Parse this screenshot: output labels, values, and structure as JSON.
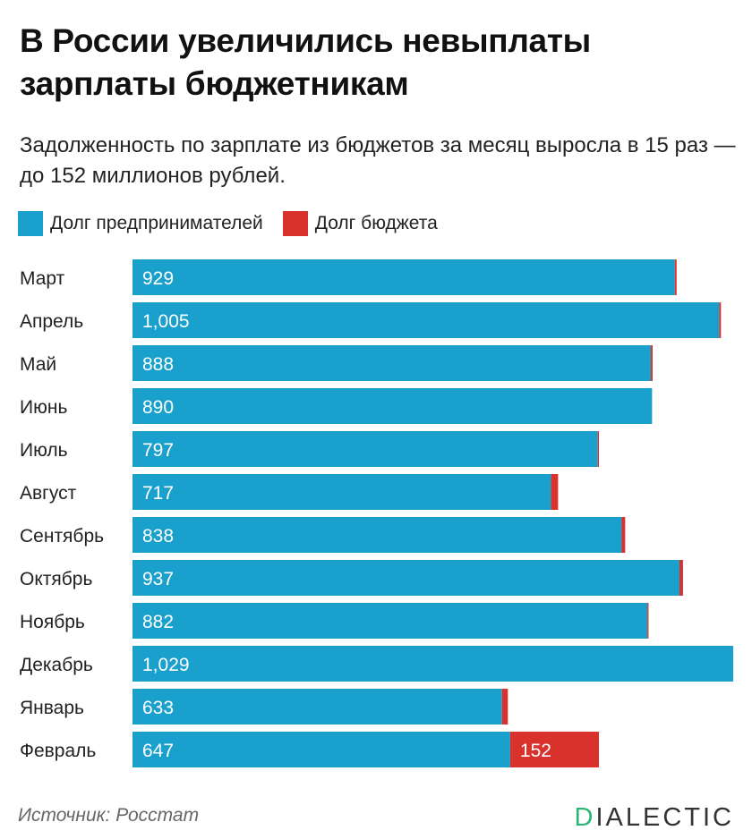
{
  "header": {
    "title": "В России увеличились невыплаты зарплаты бюджетникам",
    "subtitle": "Задолженность по зарплате из бюджетов за месяц выросла в 15 раз — до 152 миллионов рублей."
  },
  "legend": [
    {
      "label": "Долг предпринимателей",
      "color": "#1aa0cc"
    },
    {
      "label": "Долг бюджета",
      "color": "#d9312b"
    }
  ],
  "chart_data": {
    "type": "bar",
    "orientation": "horizontal",
    "stacked": true,
    "title": "В России увеличились невыплаты зарплаты бюджетникам",
    "categories": [
      "Март",
      "Апрель",
      "Май",
      "Июнь",
      "Июль",
      "Август",
      "Сентябрь",
      "Октябрь",
      "Ноябрь",
      "Декабрь",
      "Январь",
      "Февраль"
    ],
    "series": [
      {
        "name": "Долг предпринимателей",
        "color": "#1aa0cc",
        "values": [
          929,
          1005,
          888,
          890,
          797,
          717,
          838,
          937,
          882,
          1029,
          633,
          647
        ],
        "labels": [
          "929",
          "1,005",
          "888",
          "890",
          "797",
          "717",
          "838",
          "937",
          "882",
          "1,029",
          "633",
          "647"
        ]
      },
      {
        "name": "Долг бюджета",
        "color": "#d9312b",
        "values": [
          3,
          3,
          3,
          0,
          2,
          12,
          6,
          6,
          2,
          0,
          10,
          152
        ],
        "labels": [
          "",
          "",
          "",
          "",
          "",
          "",
          "",
          "",
          "",
          "",
          "",
          "152"
        ]
      }
    ],
    "xlim": [
      0,
      1029
    ],
    "grid": false,
    "legend_position": "top-left"
  },
  "footer": {
    "source": "Источник: Росстат",
    "logo_first": "D",
    "logo_rest": "IALECTIC"
  }
}
